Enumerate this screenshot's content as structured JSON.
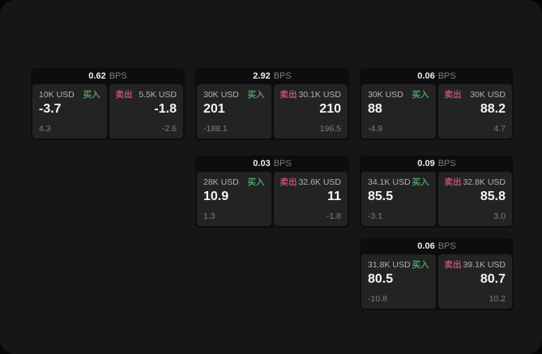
{
  "colors": {
    "buy": "#4c9f64",
    "sell": "#c1506a",
    "window_bg": "#161616",
    "card_bg": "#0d0d0d",
    "panel_bg": "#232323"
  },
  "labels": {
    "buy_side": "买入",
    "sell_side": "卖出",
    "bps_unit": "BPS"
  },
  "cards": [
    {
      "row": 1,
      "col": 1,
      "bps": "0.62",
      "buy": {
        "size": "10K USD",
        "value": "-3.7",
        "sub": "4.3"
      },
      "sell": {
        "size": "5.5K USD",
        "value": "-1.8",
        "sub": "-2.6"
      }
    },
    {
      "row": 1,
      "col": 2,
      "bps": "2.92",
      "buy": {
        "size": "30K USD",
        "value": "201",
        "sub": "-188.1"
      },
      "sell": {
        "size": "30.1K USD",
        "value": "210",
        "sub": "196.5"
      }
    },
    {
      "row": 1,
      "col": 3,
      "bps": "0.06",
      "buy": {
        "size": "30K USD",
        "value": "88",
        "sub": "-4.9"
      },
      "sell": {
        "size": "30K USD",
        "value": "88.2",
        "sub": "4.7"
      }
    },
    {
      "row": 2,
      "col": 2,
      "bps": "0.03",
      "buy": {
        "size": "28K USD",
        "value": "10.9",
        "sub": "1.3"
      },
      "sell": {
        "size": "32.6K USD",
        "value": "11",
        "sub": "-1.8"
      }
    },
    {
      "row": 2,
      "col": 3,
      "bps": "0.09",
      "buy": {
        "size": "34.1K USD",
        "value": "85.5",
        "sub": "-3.1"
      },
      "sell": {
        "size": "32.8K USD",
        "value": "85.8",
        "sub": "3.0"
      }
    },
    {
      "row": 3,
      "col": 3,
      "bps": "0.06",
      "buy": {
        "size": "31.8K USD",
        "value": "80.5",
        "sub": "-10.8"
      },
      "sell": {
        "size": "39.1K USD",
        "value": "80.7",
        "sub": "10.2"
      }
    }
  ]
}
